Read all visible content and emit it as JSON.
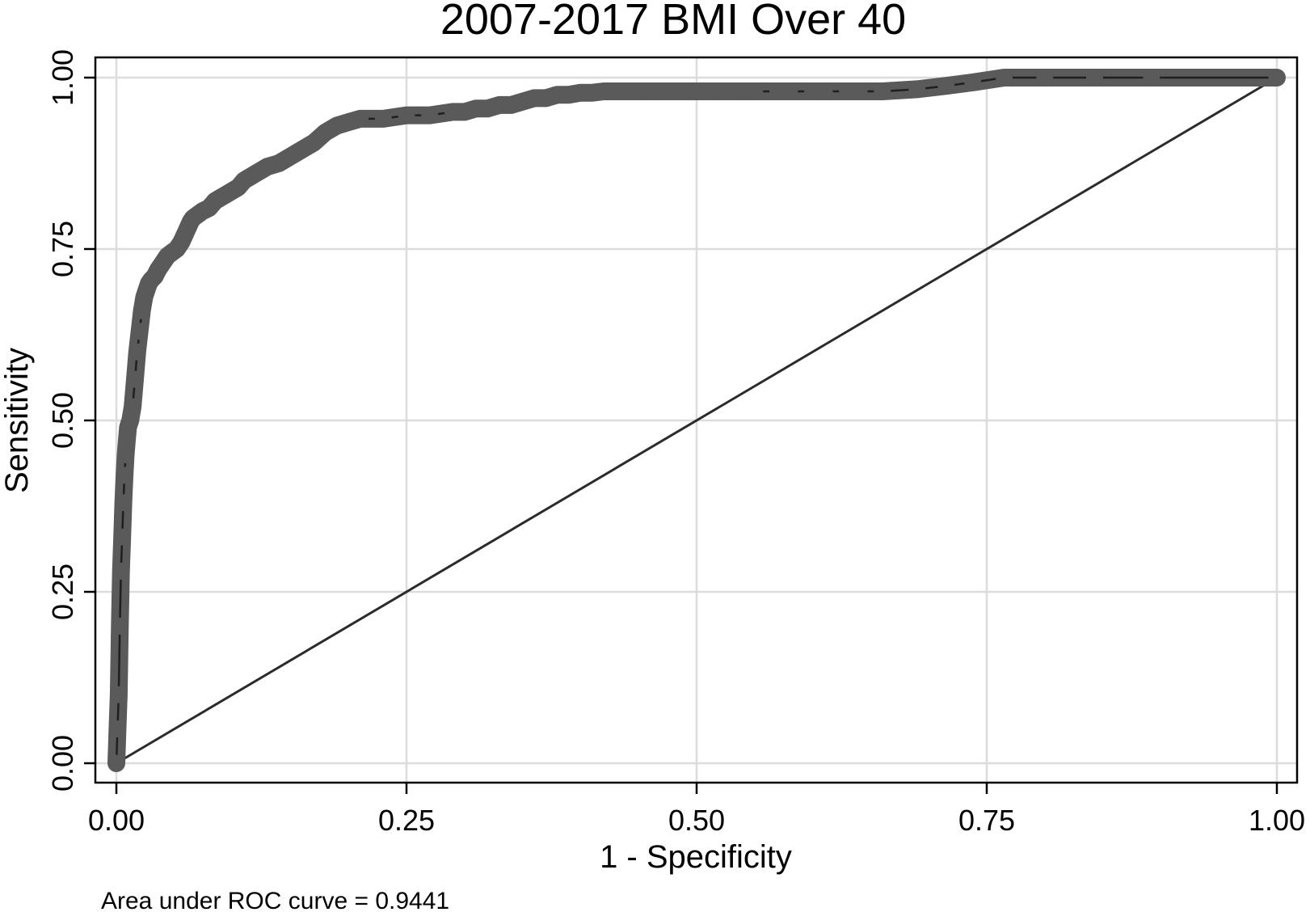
{
  "chart_data": {
    "type": "line",
    "title": "2007-2017 BMI Over 40",
    "xlabel": "1 - Specificity",
    "ylabel": "Sensitivity",
    "xlim": [
      0,
      1
    ],
    "ylim": [
      0,
      1
    ],
    "x_ticks": [
      "0.00",
      "0.25",
      "0.50",
      "0.75",
      "1.00"
    ],
    "y_ticks": [
      "0.00",
      "0.25",
      "0.50",
      "0.75",
      "1.00"
    ],
    "grid": true,
    "note": "Area under ROC curve = 0.9441",
    "colors": {
      "curve": "#5a5a5a",
      "reference": "#2b2b2b",
      "grid": "#dcdcdc",
      "frame": "#000000"
    },
    "series": [
      {
        "style": "line-with-markers",
        "x": [
          0.0,
          0.001,
          0.002,
          0.003,
          0.004,
          0.005,
          0.006,
          0.007,
          0.008,
          0.009,
          0.01,
          0.012,
          0.014,
          0.016,
          0.018,
          0.02,
          0.022,
          0.024,
          0.026,
          0.028,
          0.03,
          0.033,
          0.036,
          0.04,
          0.044,
          0.048,
          0.052,
          0.056,
          0.06,
          0.064,
          0.066,
          0.07,
          0.074,
          0.08,
          0.085,
          0.09,
          0.095,
          0.1,
          0.105,
          0.11,
          0.115,
          0.12,
          0.125,
          0.13,
          0.14,
          0.15,
          0.16,
          0.17,
          0.18,
          0.19,
          0.2,
          0.21,
          0.23,
          0.25,
          0.27,
          0.29,
          0.3,
          0.31,
          0.32,
          0.33,
          0.34,
          0.35,
          0.36,
          0.37,
          0.38,
          0.39,
          0.4,
          0.41,
          0.42,
          0.43,
          0.44,
          0.45,
          0.46,
          0.47,
          0.48,
          0.49,
          0.5,
          0.51,
          0.52,
          0.53,
          0.54,
          0.55,
          0.57,
          0.58,
          0.6,
          0.61,
          0.63,
          0.64,
          0.66,
          0.69,
          0.715,
          0.738,
          0.765,
          0.8,
          0.843,
          0.892,
          1.0
        ],
        "y": [
          0.0,
          0.05,
          0.1,
          0.2,
          0.28,
          0.33,
          0.38,
          0.42,
          0.45,
          0.47,
          0.49,
          0.5,
          0.52,
          0.56,
          0.6,
          0.63,
          0.66,
          0.68,
          0.69,
          0.7,
          0.705,
          0.71,
          0.72,
          0.73,
          0.74,
          0.745,
          0.75,
          0.76,
          0.775,
          0.79,
          0.795,
          0.8,
          0.805,
          0.81,
          0.82,
          0.825,
          0.83,
          0.835,
          0.84,
          0.85,
          0.855,
          0.86,
          0.865,
          0.87,
          0.875,
          0.885,
          0.895,
          0.905,
          0.92,
          0.93,
          0.935,
          0.94,
          0.94,
          0.945,
          0.945,
          0.95,
          0.95,
          0.955,
          0.955,
          0.96,
          0.96,
          0.965,
          0.97,
          0.97,
          0.975,
          0.975,
          0.978,
          0.978,
          0.98,
          0.98,
          0.98,
          0.98,
          0.98,
          0.98,
          0.98,
          0.98,
          0.98,
          0.98,
          0.98,
          0.98,
          0.98,
          0.98,
          0.98,
          0.98,
          0.98,
          0.98,
          0.98,
          0.98,
          0.98,
          0.983,
          0.988,
          0.993,
          1.0,
          1.0,
          1.0,
          1.0,
          1.0
        ]
      },
      {
        "style": "reference-line",
        "x": [
          0,
          1
        ],
        "y": [
          0,
          1
        ]
      }
    ]
  }
}
